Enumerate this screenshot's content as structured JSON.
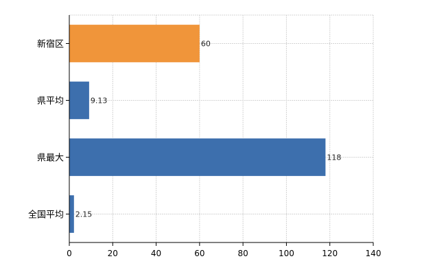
{
  "chart_data": {
    "type": "bar",
    "orientation": "horizontal",
    "categories": [
      "新宿区",
      "県平均",
      "県最大",
      "全国平均"
    ],
    "values": [
      60,
      9.13,
      118,
      2.15
    ],
    "data_labels": [
      "60",
      "9.13",
      "118",
      "2.15"
    ],
    "bar_colors": [
      "#f0953a",
      "#3d6fad",
      "#3d6fad",
      "#3d6fad"
    ],
    "xlim": [
      0,
      140
    ],
    "xticks": [
      0,
      20,
      40,
      60,
      80,
      100,
      120,
      140
    ],
    "xtick_labels": [
      "0",
      "20",
      "40",
      "60",
      "80",
      "100",
      "120",
      "140"
    ],
    "title": "",
    "xlabel": "",
    "ylabel": "",
    "grid": true,
    "legend": "none"
  }
}
